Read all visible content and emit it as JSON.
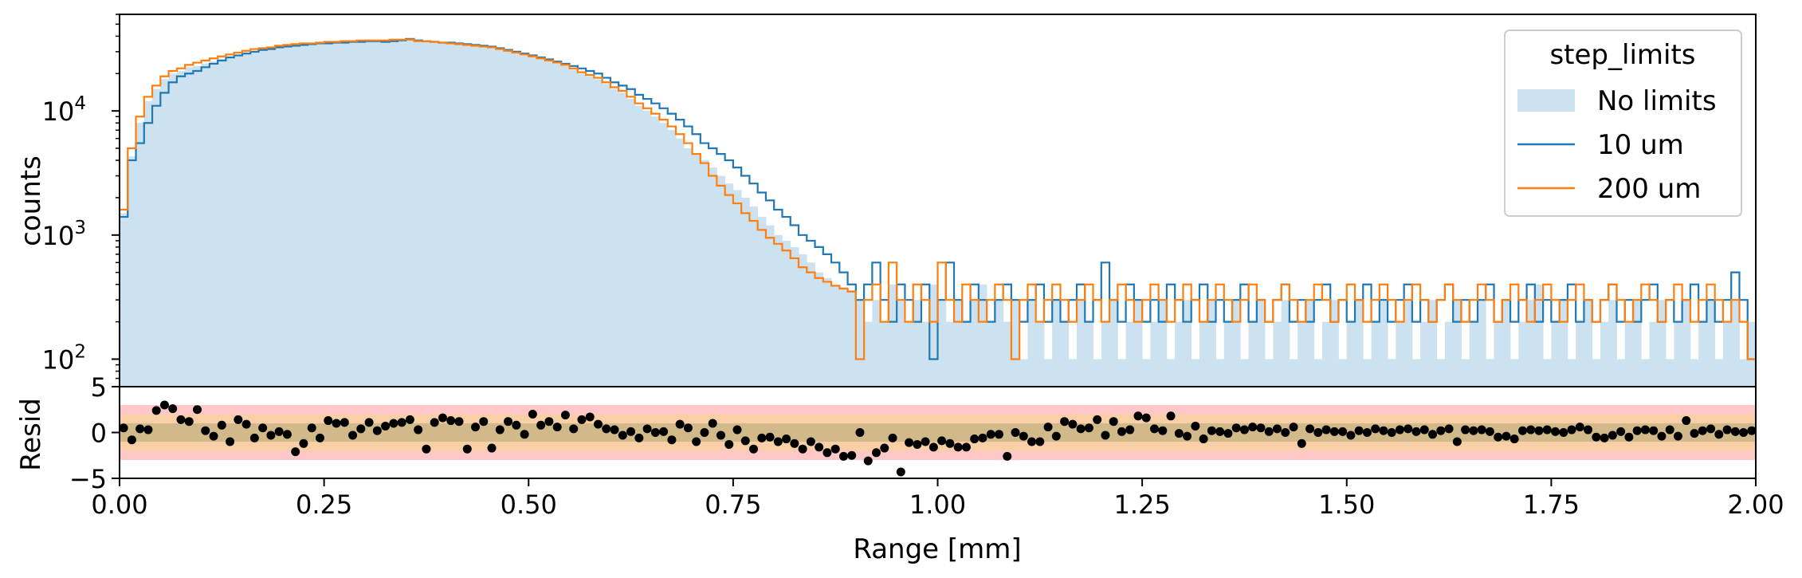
{
  "chart_data": [
    {
      "type": "histogram",
      "panel": "main",
      "xlim": [
        0.0,
        2.0
      ],
      "ylim": [
        60,
        60000
      ],
      "yscale": "log",
      "ylabel": "counts",
      "yticks": [
        {
          "value": 100,
          "base": "10",
          "exp": "2"
        },
        {
          "value": 1000,
          "base": "10",
          "exp": "3"
        },
        {
          "value": 10000,
          "base": "10",
          "exp": "4"
        }
      ],
      "bin_width": 0.01,
      "legend": {
        "title": "step_limits",
        "placement": "top-right"
      },
      "series": [
        {
          "name": "No limits",
          "style": "filled",
          "color": "#cce2f0",
          "values": [
            1500,
            4300,
            8000,
            12000,
            15000,
            18000,
            20000,
            21000,
            22500,
            23000,
            24000,
            25000,
            26000,
            27000,
            28000,
            29000,
            30000,
            31000,
            31500,
            32000,
            33000,
            33500,
            34000,
            34000,
            34500,
            35000,
            35000,
            35500,
            35500,
            36000,
            36000,
            36000,
            36000,
            36500,
            36500,
            37000,
            36000,
            36000,
            35500,
            35000,
            35000,
            34500,
            34000,
            33500,
            33000,
            32000,
            31000,
            30000,
            29000,
            28000,
            27000,
            26000,
            25000,
            24000,
            23000,
            21500,
            20000,
            19000,
            18000,
            16500,
            15000,
            14000,
            12500,
            11000,
            10000,
            9000,
            8000,
            7000,
            6000,
            5000,
            4500,
            4000,
            3500,
            3000,
            2600,
            2300,
            2000,
            1700,
            1400,
            1200,
            1000,
            900,
            800,
            700,
            600,
            500,
            450,
            400,
            380,
            360,
            300,
            200,
            300,
            200,
            400,
            300,
            200,
            300,
            200,
            400,
            300,
            200,
            300,
            200,
            300,
            400,
            200,
            300,
            200,
            300,
            100,
            300,
            200,
            100,
            300,
            200,
            100,
            300,
            200,
            100,
            200,
            300,
            100,
            200,
            300,
            100,
            200,
            300,
            100,
            200,
            300,
            100,
            200,
            300,
            100,
            200,
            300,
            100,
            200,
            300,
            100,
            200,
            300,
            100,
            200,
            300,
            100,
            200,
            300,
            100,
            200,
            300,
            100,
            200,
            300,
            100,
            200,
            300,
            100,
            200,
            300,
            100,
            200,
            300,
            100,
            200,
            300,
            100,
            200,
            300,
            100,
            200,
            300,
            400,
            100,
            200,
            300,
            100,
            200,
            300,
            100,
            200,
            300,
            100,
            200,
            300,
            100,
            200,
            300,
            100,
            200,
            300,
            100,
            200,
            300,
            100,
            200,
            300,
            100,
            200
          ]
        },
        {
          "name": "10 um",
          "style": "step",
          "color": "#1f77b4",
          "values": [
            1400,
            4000,
            5500,
            8000,
            11000,
            14000,
            17000,
            19000,
            20000,
            21000,
            22500,
            24000,
            25500,
            27000,
            28000,
            29000,
            30000,
            31000,
            31500,
            32500,
            33000,
            33500,
            34000,
            34500,
            35000,
            35000,
            35500,
            35500,
            36000,
            36000,
            36500,
            36500,
            36000,
            36500,
            37000,
            38000,
            37000,
            36500,
            36000,
            35500,
            35500,
            35000,
            34500,
            34000,
            33500,
            33000,
            32000,
            31000,
            30000,
            29000,
            28000,
            27000,
            26000,
            25000,
            24000,
            23000,
            22000,
            21000,
            20000,
            18500,
            17000,
            16000,
            15000,
            13500,
            12500,
            11500,
            10500,
            9500,
            8500,
            7500,
            6500,
            5500,
            5000,
            4500,
            4000,
            3500,
            3000,
            2600,
            2200,
            1900,
            1600,
            1400,
            1200,
            1000,
            900,
            800,
            700,
            600,
            500,
            400,
            300,
            400,
            600,
            300,
            200,
            400,
            300,
            200,
            400,
            100,
            300,
            600,
            300,
            200,
            400,
            300,
            200,
            300,
            400,
            300,
            200,
            300,
            400,
            200,
            300,
            200,
            300,
            400,
            200,
            300,
            600,
            300,
            200,
            400,
            300,
            200,
            300,
            200,
            400,
            300,
            200,
            300,
            400,
            200,
            300,
            200,
            300,
            400,
            200,
            300,
            200,
            300,
            400,
            200,
            300,
            200,
            300,
            400,
            200,
            300,
            200,
            300,
            400,
            200,
            300,
            200,
            300,
            400,
            200,
            300,
            200,
            300,
            400,
            200,
            300,
            200,
            300,
            400,
            200,
            300,
            200,
            300,
            400,
            200,
            300,
            200,
            300,
            400,
            200,
            300,
            200,
            300,
            400,
            200,
            300,
            200,
            300,
            400,
            200,
            300,
            200,
            300,
            400,
            200,
            300,
            200,
            300,
            500,
            300,
            100
          ]
        },
        {
          "name": "200 um",
          "style": "step",
          "color": "#ff7f0e",
          "values": [
            1600,
            5000,
            9000,
            13000,
            16000,
            19000,
            21000,
            22000,
            23500,
            24500,
            25500,
            26500,
            27500,
            28500,
            29500,
            30500,
            31500,
            32000,
            32500,
            33500,
            34000,
            34500,
            35000,
            35000,
            35500,
            36000,
            36000,
            36500,
            36500,
            37000,
            37000,
            37000,
            37000,
            37500,
            37500,
            37500,
            36500,
            36500,
            36000,
            35500,
            35000,
            34500,
            34000,
            33500,
            33000,
            32500,
            31500,
            30500,
            29500,
            28500,
            27500,
            26500,
            25500,
            24500,
            23500,
            22000,
            20500,
            19500,
            18500,
            17000,
            15500,
            14500,
            13000,
            11500,
            10500,
            9500,
            8500,
            7500,
            6500,
            5500,
            4500,
            3800,
            3000,
            2500,
            2100,
            1800,
            1500,
            1300,
            1100,
            950,
            850,
            750,
            650,
            550,
            500,
            450,
            420,
            390,
            370,
            350,
            100,
            300,
            400,
            200,
            600,
            300,
            200,
            400,
            300,
            200,
            600,
            300,
            200,
            400,
            300,
            200,
            300,
            400,
            300,
            100,
            300,
            400,
            200,
            300,
            400,
            300,
            200,
            300,
            400,
            300,
            200,
            300,
            400,
            300,
            200,
            300,
            400,
            300,
            200,
            300,
            400,
            300,
            200,
            300,
            400,
            300,
            200,
            300,
            400,
            300,
            200,
            300,
            400,
            300,
            200,
            300,
            400,
            300,
            200,
            300,
            400,
            300,
            200,
            300,
            400,
            300,
            200,
            300,
            400,
            300,
            200,
            300,
            400,
            300,
            200,
            300,
            400,
            300,
            200,
            300,
            400,
            300,
            200,
            300,
            400,
            300,
            200,
            300,
            400,
            300,
            200,
            300,
            400,
            300,
            200,
            300,
            400,
            300,
            200,
            300,
            400,
            300,
            200,
            300,
            400,
            300,
            200,
            300,
            200,
            100
          ]
        }
      ]
    },
    {
      "type": "scatter",
      "panel": "residual",
      "xlim": [
        0.0,
        2.0
      ],
      "ylim": [
        -5,
        5
      ],
      "xlabel": "Range [mm]",
      "ylabel": "Resid",
      "xticks": [
        "0.00",
        "0.25",
        "0.50",
        "0.75",
        "1.00",
        "1.25",
        "1.50",
        "1.75",
        "2.00"
      ],
      "yticks": [
        {
          "value": -5,
          "label": "−5"
        },
        {
          "value": 0,
          "label": "0"
        },
        {
          "value": 5,
          "label": "5"
        }
      ],
      "bands": [
        {
          "range": [
            -3,
            3
          ],
          "color": "#ffc8c8"
        },
        {
          "range": [
            -2,
            2
          ],
          "color": "#f8cfa6"
        },
        {
          "range": [
            -1,
            1
          ],
          "color": "#d1b98a"
        }
      ],
      "marker_color": "#000000",
      "x_start": 0.005,
      "x_step": 0.01,
      "values": [
        0.5,
        -0.8,
        0.4,
        0.3,
        2.4,
        3.0,
        2.6,
        1.4,
        1.2,
        2.5,
        0.2,
        -0.4,
        0.8,
        -1.0,
        1.4,
        0.9,
        -0.6,
        0.5,
        -0.3,
        0.1,
        -0.2,
        -2.1,
        -1.2,
        0.5,
        -0.6,
        1.3,
        1.0,
        1.1,
        -0.3,
        0.4,
        1.1,
        0.2,
        0.7,
        1.0,
        1.1,
        1.4,
        0.3,
        -1.8,
        1.1,
        1.6,
        1.3,
        1.2,
        -1.8,
        0.6,
        1.2,
        -1.7,
        0.3,
        1.2,
        0.8,
        -0.2,
        2.0,
        0.8,
        1.2,
        0.6,
        1.9,
        0.4,
        1.4,
        1.7,
        0.9,
        0.4,
        0.3,
        -0.3,
        0.1,
        -0.6,
        0.4,
        0.0,
        0.1,
        -0.8,
        0.9,
        0.5,
        -1.0,
        0.0,
        1.0,
        -0.3,
        -1.3,
        0.3,
        -0.9,
        -1.8,
        -0.6,
        -0.5,
        -1.0,
        -0.7,
        -1.2,
        -1.8,
        -1.0,
        -1.6,
        -2.2,
        -1.8,
        -2.6,
        -2.5,
        0.0,
        -3.1,
        -2.2,
        -1.7,
        -0.6,
        -4.3,
        -1.1,
        -1.3,
        -1.0,
        -1.6,
        -0.9,
        -1.2,
        -1.6,
        -1.6,
        -0.7,
        -0.6,
        -0.2,
        -0.2,
        -2.6,
        0.0,
        -0.4,
        -1.0,
        -1.0,
        0.6,
        -0.4,
        1.2,
        0.9,
        0.4,
        0.5,
        1.4,
        -0.3,
        1.2,
        0.1,
        0.3,
        1.8,
        1.6,
        0.4,
        0.2,
        1.8,
        -0.1,
        -0.4,
        0.7,
        -0.7,
        0.2,
        0.1,
        -0.1,
        0.5,
        0.3,
        0.6,
        0.5,
        0.1,
        0.4,
        0.0,
        0.6,
        -1.2,
        0.4,
        0.0,
        0.3,
        0.1,
        0.1,
        -0.3,
        0.2,
        0.0,
        0.4,
        0.2,
        0.0,
        0.3,
        0.4,
        0.1,
        0.3,
        -0.2,
        0.2,
        0.4,
        -1.0,
        0.3,
        0.2,
        0.3,
        0.1,
        -0.5,
        -0.4,
        -0.7,
        0.2,
        0.3,
        0.2,
        0.3,
        0.1,
        0.0,
        0.3,
        0.6,
        0.3,
        -0.5,
        -0.6,
        -0.3,
        0.1,
        -0.5,
        0.2,
        0.3,
        0.2,
        -0.4,
        0.3,
        -0.4,
        1.3,
        -0.1,
        0.2,
        0.4,
        -0.2,
        0.3,
        0.1,
        0.0,
        0.2
      ]
    }
  ]
}
